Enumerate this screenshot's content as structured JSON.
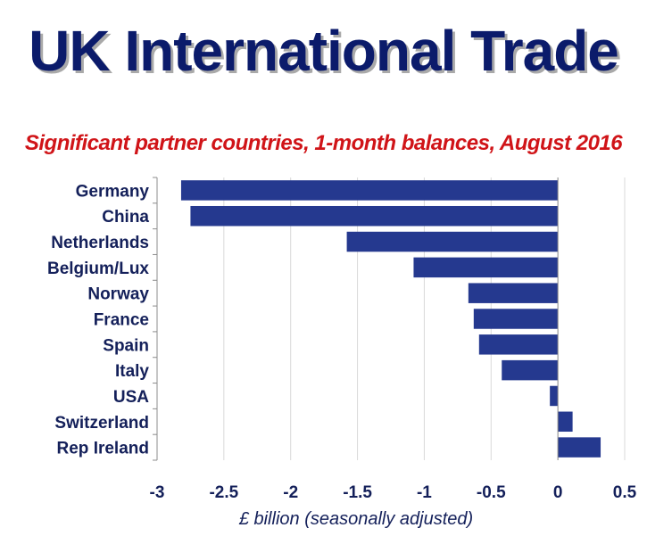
{
  "chart_data": {
    "type": "bar",
    "orientation": "horizontal",
    "title": "UK International Trade",
    "subtitle": "Significant partner countries, 1-month balances, August 2016",
    "xlabel": "£ billion (seasonally adjusted)",
    "ylabel": "",
    "categories": [
      "Germany",
      "China",
      "Netherlands",
      "Belgium/Lux",
      "Norway",
      "France",
      "Spain",
      "Italy",
      "USA",
      "Switzerland",
      "Rep Ireland"
    ],
    "values": [
      -2.82,
      -2.75,
      -1.58,
      -1.08,
      -0.67,
      -0.63,
      -0.59,
      -0.42,
      -0.06,
      0.11,
      0.32
    ],
    "xlim": [
      -3,
      0.5
    ],
    "xticks": [
      -3,
      -2.5,
      -2,
      -1.5,
      -1,
      -0.5,
      0,
      0.5
    ],
    "xtick_labels": [
      "-3",
      "-2.5",
      "-2",
      "-1.5",
      "-1",
      "-0.5",
      "0",
      "0.5"
    ],
    "grid": true,
    "bar_color": "#25398f",
    "grid_color": "#d9d9d9",
    "axis_color": "#8c8c8c"
  }
}
